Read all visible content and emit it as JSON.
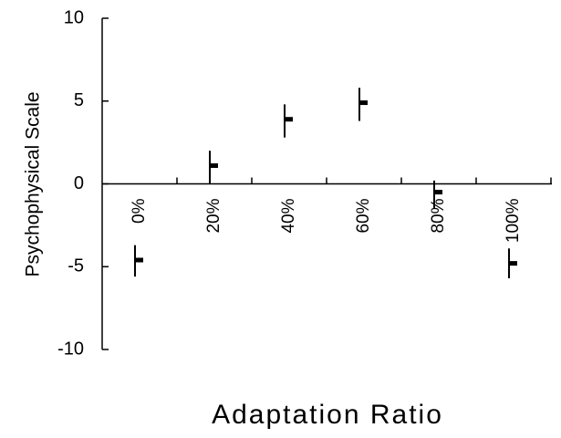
{
  "chart_data": {
    "type": "scatter",
    "title": "",
    "xlabel": "Adaptation Ratio",
    "ylabel": "Psychophysical Scale",
    "categories": [
      "0%",
      "20%",
      "40%",
      "60%",
      "80%",
      "100%"
    ],
    "ylim": [
      -10,
      10
    ],
    "yticks": [
      "10",
      "5",
      "0",
      "-5",
      "-10"
    ],
    "grid": false,
    "legend": "none",
    "series": [
      {
        "values": [
          -4.6,
          1.1,
          3.9,
          4.9,
          -0.5,
          -4.8
        ],
        "err_low": [
          -5.6,
          0.0,
          2.8,
          3.8,
          -1.5,
          -5.7
        ],
        "err_high": [
          -3.7,
          2.0,
          4.8,
          5.8,
          0.2,
          -3.9
        ]
      }
    ]
  }
}
